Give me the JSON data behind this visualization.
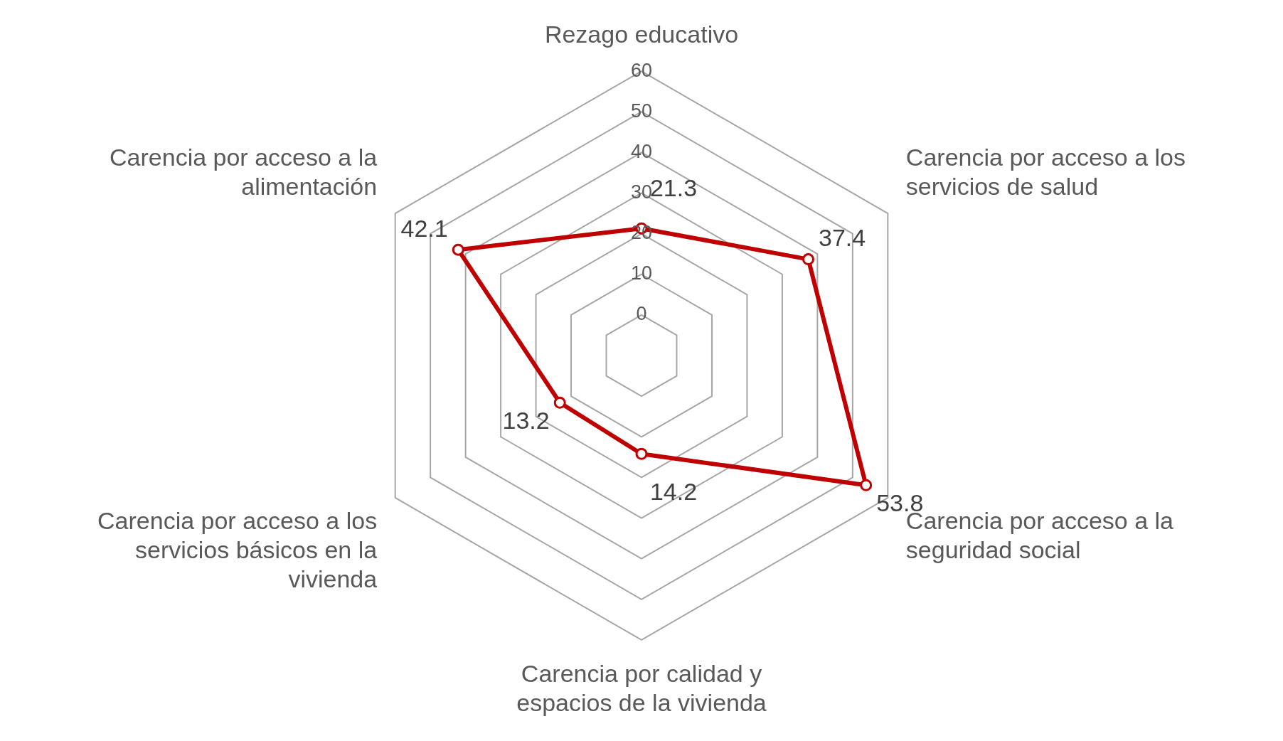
{
  "chart_data": {
    "type": "radar",
    "categories": [
      "Rezago educativo",
      "Carencia por acceso a los servicios de salud",
      "Carencia por acceso a la seguridad social",
      "Carencia por calidad y espacios de la vivienda",
      "Carencia por acceso a los servicios básicos en la vivienda",
      "Carencia por acceso a la alimentación"
    ],
    "series": [
      {
        "color": "#c00000",
        "values": [
          21.3,
          37.4,
          53.8,
          14.2,
          13.2,
          42.1
        ]
      }
    ],
    "ylim": [
      -10,
      60
    ],
    "yticks": [
      0,
      10,
      20,
      30,
      40,
      50,
      60
    ],
    "data_labels": true,
    "marker": "circle",
    "grid": true,
    "legend": false
  }
}
